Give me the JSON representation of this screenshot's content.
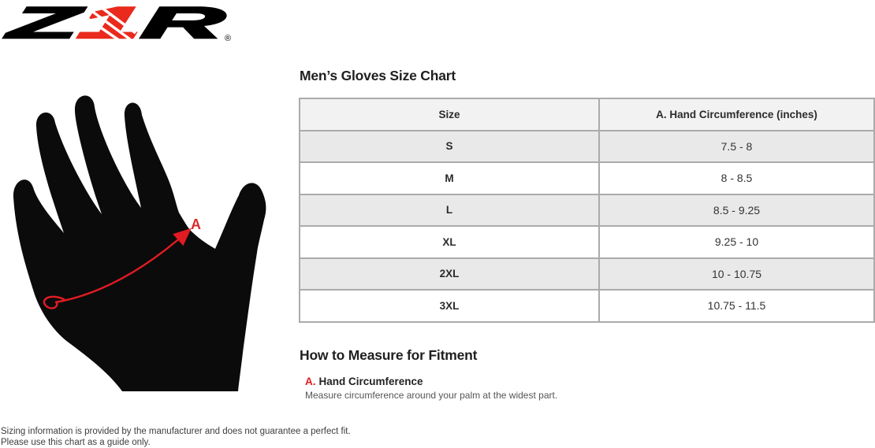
{
  "brand": {
    "z": "Z",
    "one": "1",
    "r": "R",
    "registered": "®"
  },
  "size_chart": {
    "title": "Men’s Gloves Size Chart",
    "columns": [
      "Size",
      "A. Hand Circumference (inches)"
    ],
    "rows": [
      {
        "size": "S",
        "circumference": "7.5 - 8"
      },
      {
        "size": "M",
        "circumference": "8 - 8.5"
      },
      {
        "size": "L",
        "circumference": "8.5 - 9.25"
      },
      {
        "size": "XL",
        "circumference": "9.25 - 10"
      },
      {
        "size": "2XL",
        "circumference": "10 - 10.75"
      },
      {
        "size": "3XL",
        "circumference": "10.75 - 11.5"
      }
    ]
  },
  "how_to_measure": {
    "title": "How to Measure for Fitment",
    "items": [
      {
        "letter": "A.",
        "label": "Hand Circumference",
        "description": "Measure circumference around your palm at the widest part."
      }
    ]
  },
  "diagram": {
    "label": "A"
  },
  "footer": {
    "line1": "Sizing information is provided by the manufacturer and does not guarantee a perfect fit.",
    "line2": "Please use this chart as a guide only."
  },
  "colors": {
    "brand_red": "#e92a1c",
    "diagram_red": "#e11b22",
    "table_border": "#ababab",
    "header_bg": "#f2f2f2",
    "row_alt": "#e9e9e9"
  }
}
